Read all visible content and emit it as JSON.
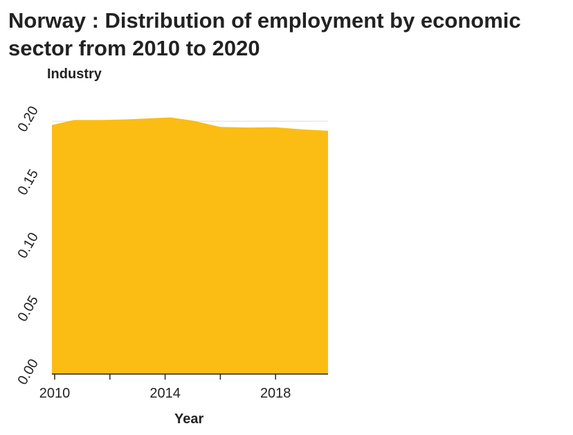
{
  "chart_data": {
    "type": "area",
    "title": "Norway : Distribution of employment by economic sector from 2010 to 2020",
    "xlabel": "Year",
    "ylabel": "Industry",
    "x": [
      2009.9,
      2010.7,
      2011.7,
      2012.7,
      2013.7,
      2014.2,
      2015.0,
      2016.0,
      2017.0,
      2018.0,
      2019.0,
      2019.9
    ],
    "values": [
      0.197,
      0.201,
      0.201,
      0.2015,
      0.2025,
      0.203,
      0.2005,
      0.1955,
      0.195,
      0.1952,
      0.1935,
      0.1925
    ],
    "xlim": [
      2009.9,
      2019.9
    ],
    "ylim": [
      0,
      0.2
    ],
    "xticks": [
      2010,
      2014,
      2018
    ],
    "yticks": [
      "0.00",
      "0.05",
      "0.10",
      "0.15",
      "0.20"
    ],
    "ytick_values": [
      0,
      0.05,
      0.1,
      0.15,
      0.2
    ],
    "fill_color": "#fbbc14",
    "grid": "horizontal"
  }
}
